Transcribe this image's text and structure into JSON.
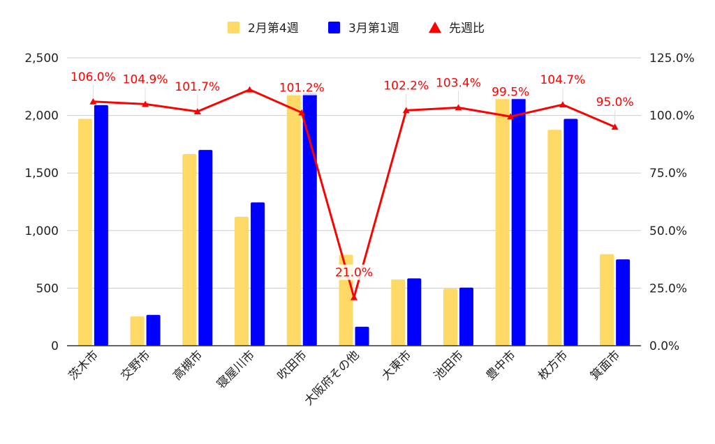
{
  "chart_data": {
    "type": "bar",
    "categories": [
      "茨木市",
      "交野市",
      "高槻市",
      "寝屋川市",
      "吹田市",
      "大阪府その他",
      "大東市",
      "池田市",
      "豊中市",
      "枚方市",
      "箕面市"
    ],
    "series": [
      {
        "name": "2月第4週",
        "type": "bar",
        "axis": "left",
        "color": "#FFD966",
        "values": [
          1970,
          255,
          1665,
          1120,
          2190,
          790,
          575,
          495,
          2160,
          1875,
          795
        ]
      },
      {
        "name": "3月第1週",
        "type": "bar",
        "axis": "left",
        "color": "#0000FF",
        "values": [
          2090,
          268,
          1700,
          1245,
          2195,
          165,
          585,
          505,
          2150,
          1970,
          750
        ]
      },
      {
        "name": "先週比",
        "type": "line",
        "axis": "right",
        "color": "#FF0000",
        "marker": "triangle",
        "values": [
          106.0,
          104.9,
          101.7,
          111.2,
          101.2,
          21.0,
          102.2,
          103.4,
          99.5,
          104.7,
          95.0
        ],
        "labels": [
          "106.0%",
          "104.9%",
          "101.7%",
          "",
          "101.2%",
          "21.0%",
          "102.2%",
          "103.4%",
          "99.5%",
          "104.7%",
          "95.0%"
        ]
      }
    ],
    "y_left": {
      "ylim": [
        0,
        2500
      ],
      "ticks": [
        "0",
        "500",
        "1,000",
        "1,500",
        "2,000",
        "2,500"
      ],
      "tick_values": [
        0,
        500,
        1000,
        1500,
        2000,
        2500
      ]
    },
    "y_right": {
      "ylim": [
        0,
        125
      ],
      "ticks": [
        "0.0%",
        "25.0%",
        "50.0%",
        "75.0%",
        "100.0%",
        "125.0%"
      ],
      "tick_values": [
        0,
        25,
        50,
        75,
        100,
        125
      ]
    },
    "legend_position": "top",
    "grid": true
  }
}
